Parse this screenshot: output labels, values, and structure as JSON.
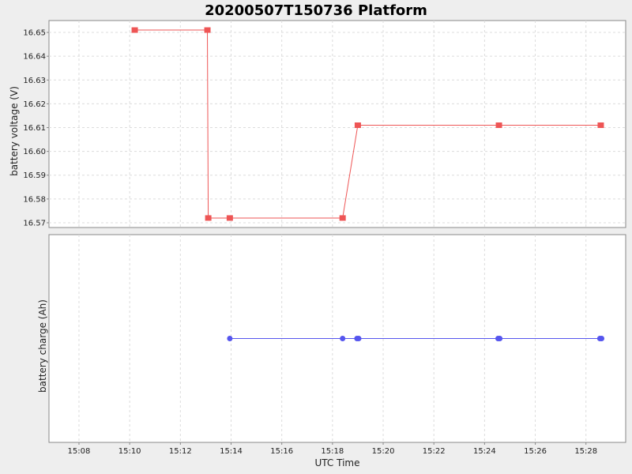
{
  "title": "20200507T150736 Platform",
  "chart_data": [
    {
      "type": "line",
      "ylabel": "battery voltage (V)",
      "xlim": [
        "15:06:49",
        "15:29:34"
      ],
      "ylim": [
        16.568,
        16.655
      ],
      "yticks": [
        "16.57",
        "16.58",
        "16.59",
        "16.60",
        "16.61",
        "16.62",
        "16.63",
        "16.64",
        "16.65"
      ],
      "series": [
        {
          "marker": "square",
          "color": "#ee5555",
          "x": [
            "15:10:12",
            "15:13:04",
            "15:13:06",
            "15:13:57",
            "15:18:24",
            "15:19:00",
            "15:24:34",
            "15:28:35"
          ],
          "y": [
            16.651,
            16.651,
            16.572,
            16.572,
            16.572,
            16.611,
            16.611,
            16.611
          ]
        }
      ]
    },
    {
      "type": "line",
      "ylabel": "battery charge (Ah)",
      "xlabel": "UTC Time",
      "xlim": [
        "15:06:49",
        "15:29:34"
      ],
      "xticks": [
        "15:08",
        "15:10",
        "15:12",
        "15:14",
        "15:16",
        "15:18",
        "15:20",
        "15:22",
        "15:24",
        "15:26",
        "15:28"
      ],
      "series": [
        {
          "marker": "circle",
          "color": "#5555ee",
          "x": [
            "15:13:57",
            "15:18:24",
            "15:18:58",
            "15:19:02",
            "15:24:32",
            "15:24:36",
            "15:28:33",
            "15:28:37"
          ],
          "y": [
            0,
            0,
            0,
            0,
            0,
            0,
            0,
            0
          ]
        }
      ]
    }
  ]
}
